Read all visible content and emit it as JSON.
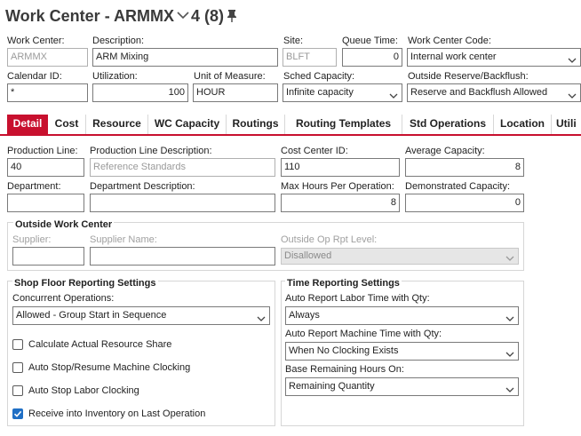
{
  "header": {
    "title": "Work Center - ARMMX",
    "count": "4 (8)"
  },
  "fields": {
    "work_center": {
      "label": "Work Center:",
      "value": "ARMMX"
    },
    "description": {
      "label": "Description:",
      "value": "ARM Mixing"
    },
    "site": {
      "label": "Site:",
      "value": "BLFT"
    },
    "queue_time": {
      "label": "Queue Time:",
      "value": "0"
    },
    "work_center_code": {
      "label": "Work Center Code:",
      "value": "Internal work center"
    },
    "calendar_id": {
      "label": "Calendar ID:",
      "value": "*"
    },
    "utilization": {
      "label": "Utilization:",
      "value": "100"
    },
    "unit_of_measure": {
      "label": "Unit of Measure:",
      "value": "HOUR"
    },
    "sched_capacity": {
      "label": "Sched Capacity:",
      "value": "Infinite capacity"
    },
    "outside_reserve": {
      "label": "Outside Reserve/Backflush:",
      "value": "Reserve and Backflush Allowed"
    }
  },
  "tabs": [
    "Detail",
    "Cost",
    "Resource",
    "WC Capacity",
    "Routings",
    "Routing Templates",
    "Std Operations",
    "Location",
    "Utili"
  ],
  "detail": {
    "production_line": {
      "label": "Production Line:",
      "value": "40"
    },
    "production_line_desc": {
      "label": "Production Line Description:",
      "value": "Reference Standards"
    },
    "cost_center_id": {
      "label": "Cost Center ID:",
      "value": "110"
    },
    "average_capacity": {
      "label": "Average Capacity:",
      "value": "8"
    },
    "department": {
      "label": "Department:",
      "value": ""
    },
    "department_desc": {
      "label": "Department Description:",
      "value": ""
    },
    "max_hours": {
      "label": "Max Hours Per Operation:",
      "value": "8"
    },
    "demonstrated_capacity": {
      "label": "Demonstrated Capacity:",
      "value": "0"
    }
  },
  "outside_work_center": {
    "title": "Outside Work Center",
    "supplier_label": "Supplier:",
    "supplier_value": "",
    "supplier_name_label": "Supplier Name:",
    "supplier_name_value": "",
    "op_rpt_level_label": "Outside Op Rpt Level:",
    "op_rpt_level_value": "Disallowed"
  },
  "shop_floor": {
    "title": "Shop Floor Reporting Settings",
    "concurrent_label": "Concurrent Operations:",
    "concurrent_value": "Allowed - Group Start in Sequence",
    "checkboxes": [
      {
        "label": "Calculate Actual Resource Share",
        "checked": false
      },
      {
        "label": "Auto Stop/Resume Machine Clocking",
        "checked": false
      },
      {
        "label": "Auto Stop Labor Clocking",
        "checked": false
      },
      {
        "label": "Receive into Inventory on Last Operation",
        "checked": true
      }
    ]
  },
  "time_reporting": {
    "title": "Time Reporting Settings",
    "labor_label": "Auto Report Labor Time with Qty:",
    "labor_value": "Always",
    "machine_label": "Auto Report Machine Time with Qty:",
    "machine_value": "When No Clocking Exists",
    "base_label": "Base Remaining Hours On:",
    "base_value": "Remaining Quantity"
  },
  "colors": {
    "accent": "#c8102e",
    "checkbox_on": "#1f6fc5"
  }
}
